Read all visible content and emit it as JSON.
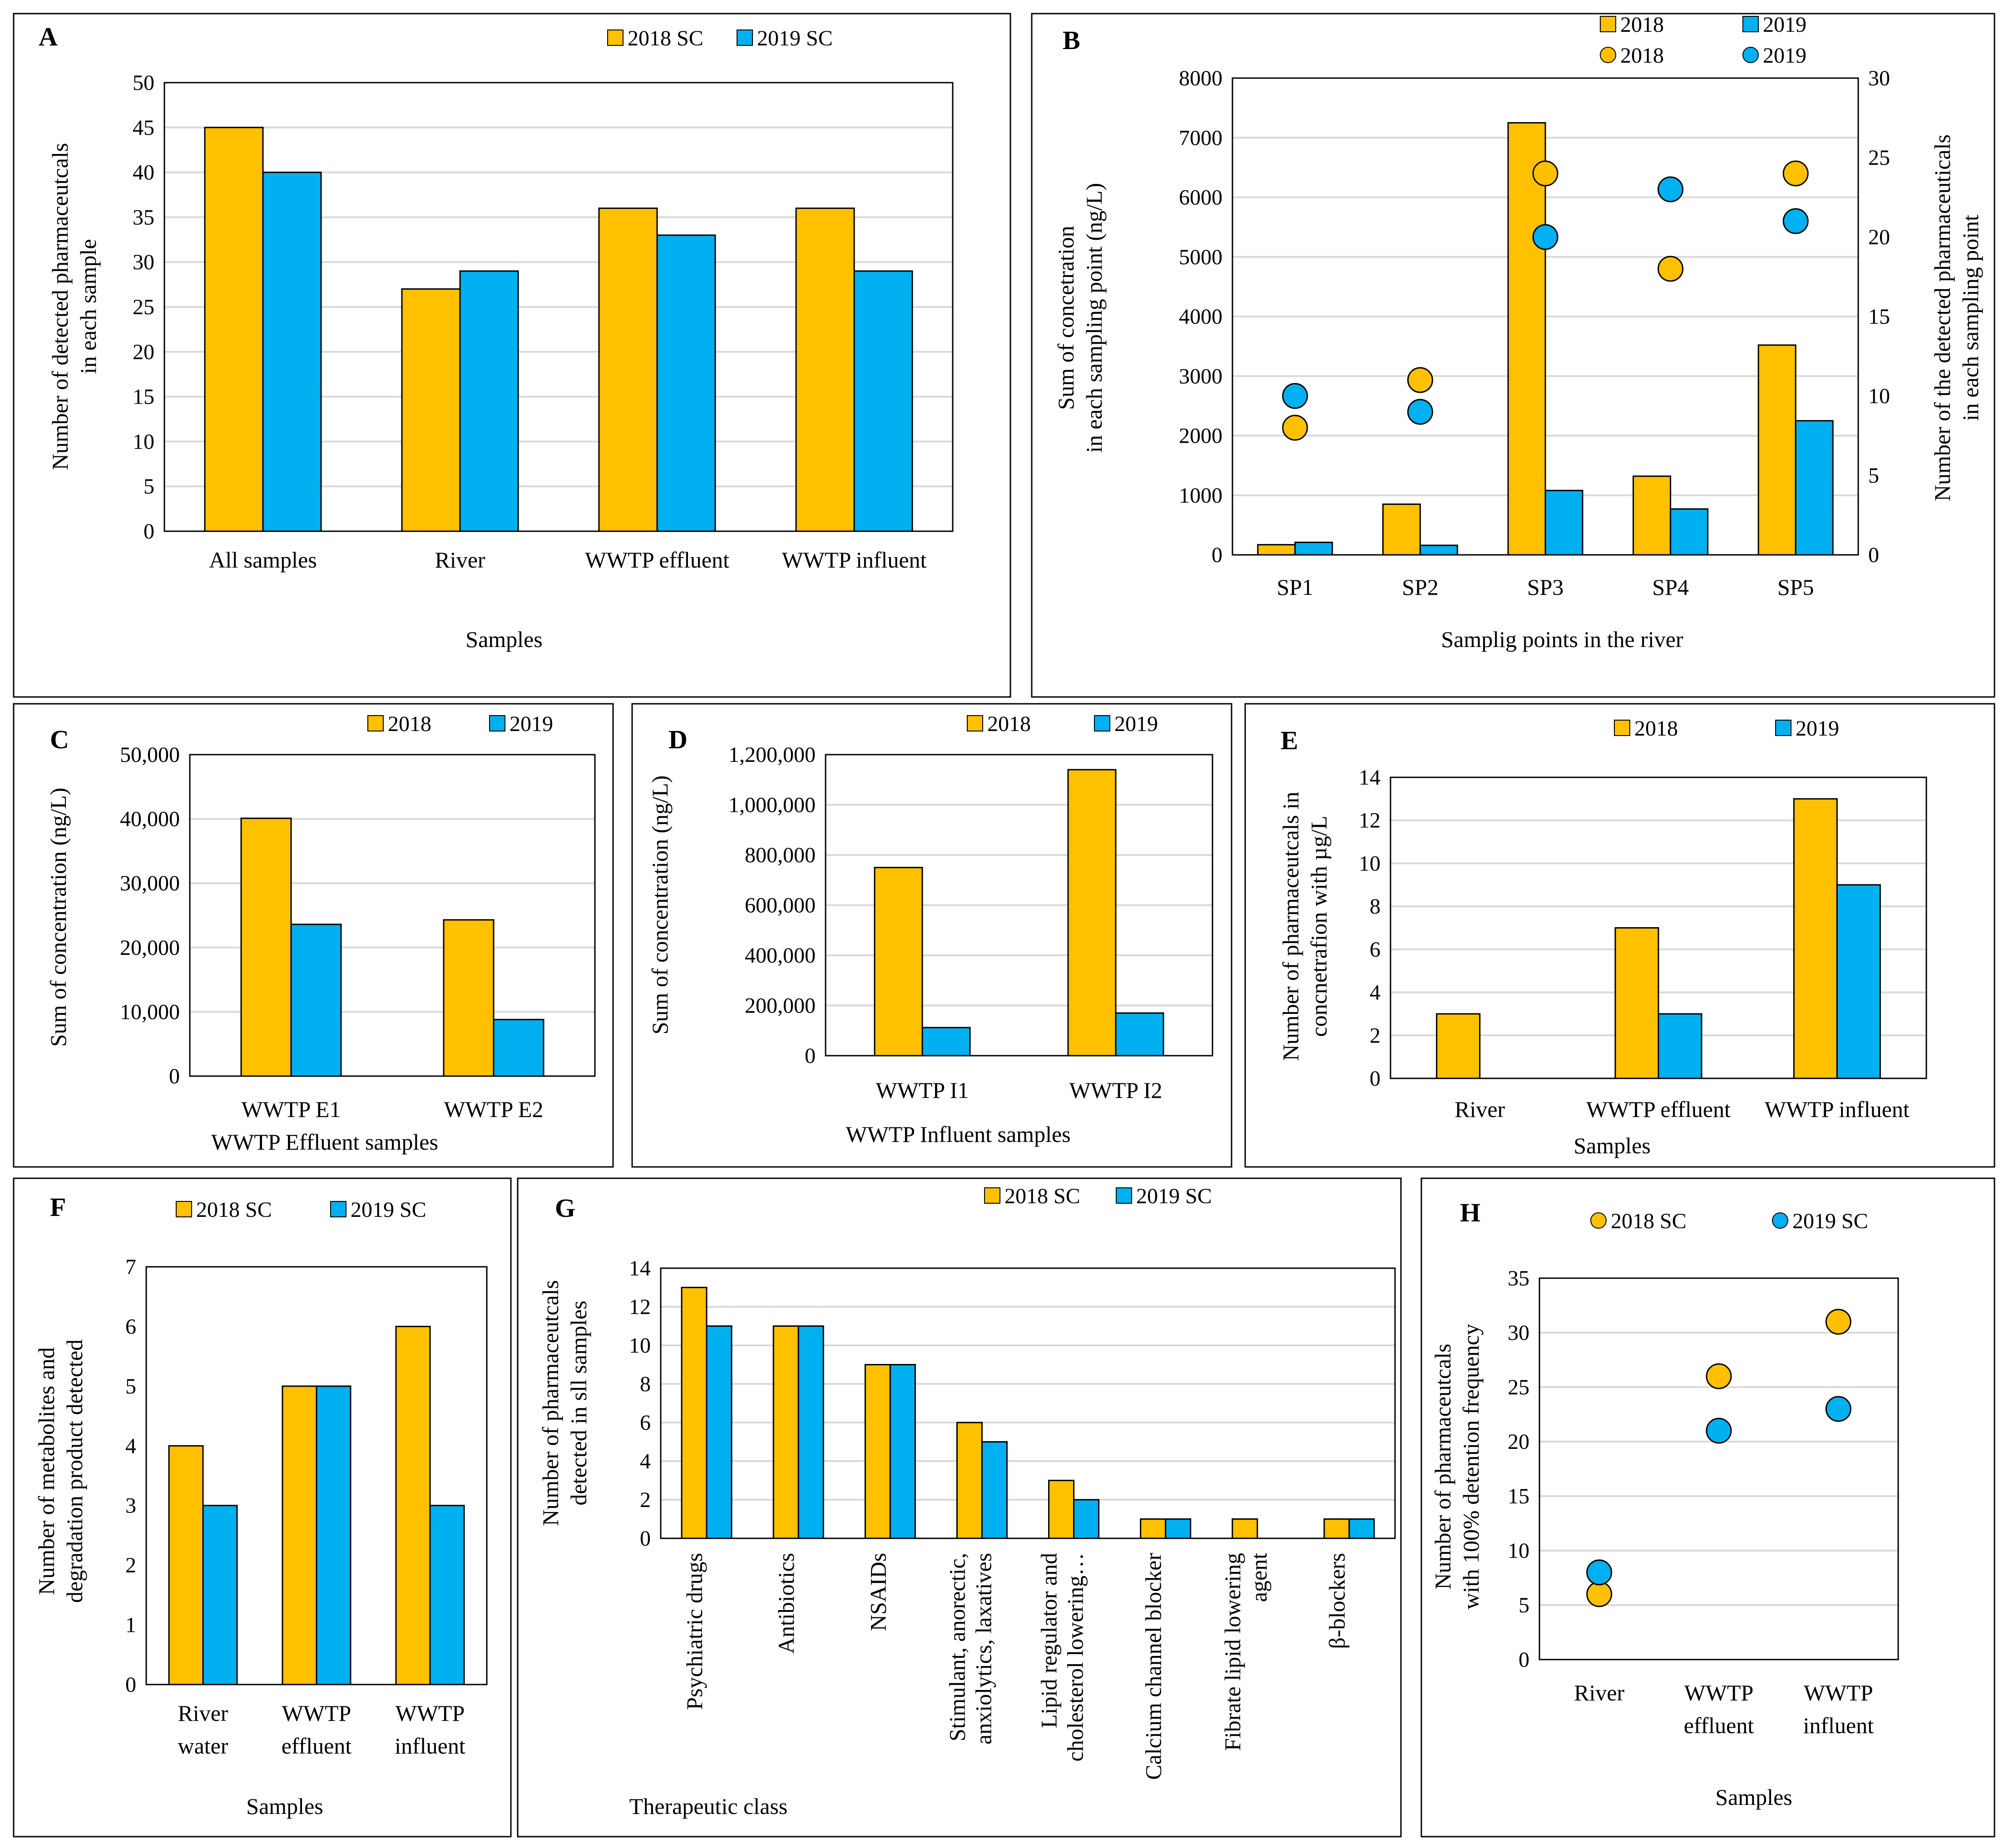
{
  "colors": {
    "y2018": "#ffc000",
    "y2019": "#00b0f0"
  },
  "chart_data": [
    {
      "id": "A",
      "type": "bar",
      "letter": "A",
      "categories": [
        "All samples",
        "River",
        "WWTP effluent",
        "WWTP influent"
      ],
      "series": [
        {
          "name": "2018 SC",
          "values": [
            45,
            27,
            36,
            36
          ]
        },
        {
          "name": "2019 SC",
          "values": [
            40,
            29,
            33,
            29
          ]
        }
      ],
      "ylim": [
        0,
        50
      ],
      "yticks": [
        0,
        5,
        10,
        15,
        20,
        25,
        30,
        35,
        40,
        45,
        50
      ],
      "ylabel": [
        "Number of detected pharmaceutcals",
        "in each sample"
      ],
      "xlabel": "Samples",
      "grid": true,
      "legend": "top"
    },
    {
      "id": "B",
      "type": "bar+scatter",
      "letter": "B",
      "categories": [
        "SP1",
        "SP2",
        "SP3",
        "SP4",
        "SP5"
      ],
      "series": [
        {
          "name": "2018",
          "kind": "bar",
          "values": [
            170,
            850,
            7250,
            1320,
            3520
          ]
        },
        {
          "name": "2019",
          "kind": "bar",
          "values": [
            210,
            160,
            1080,
            770,
            2250
          ]
        },
        {
          "name": "2018",
          "kind": "scatter",
          "axis": "secondary",
          "values": [
            8,
            11,
            24,
            18,
            24
          ]
        },
        {
          "name": "2019",
          "kind": "scatter",
          "axis": "secondary",
          "values": [
            10,
            9,
            20,
            23,
            21
          ]
        }
      ],
      "ylim": [
        0,
        8000
      ],
      "yticks": [
        0,
        1000,
        2000,
        3000,
        4000,
        5000,
        6000,
        7000,
        8000
      ],
      "y2lim": [
        0,
        30
      ],
      "y2ticks": [
        0,
        5,
        10,
        15,
        20,
        25,
        30
      ],
      "ylabel": [
        "Sum of concetration",
        "in each sampling point (ng/L)"
      ],
      "y2label": [
        "Number of the detected pharmaceuticals",
        "in each sampling point"
      ],
      "xlabel": "Samplig points in the river",
      "grid": true,
      "legend": "top-right"
    },
    {
      "id": "C",
      "type": "bar",
      "letter": "C",
      "categories": [
        "WWTP E1",
        "WWTP E2"
      ],
      "series": [
        {
          "name": "2018",
          "values": [
            40100,
            24300
          ]
        },
        {
          "name": "2019",
          "values": [
            23600,
            8800
          ]
        }
      ],
      "ylim": [
        0,
        50000
      ],
      "yticks": [
        "0",
        "10,000",
        "20,000",
        "30,000",
        "40,000",
        "50,000"
      ],
      "ylabel": [
        "Sum of concentration (ng/L)"
      ],
      "xlabel": "WWTP Effluent samples",
      "grid": true,
      "legend": "top"
    },
    {
      "id": "D",
      "type": "bar",
      "letter": "D",
      "categories": [
        "WWTP I1",
        "WWTP I2"
      ],
      "series": [
        {
          "name": "2018",
          "values": [
            750000,
            1140000
          ]
        },
        {
          "name": "2019",
          "values": [
            112000,
            170000
          ]
        }
      ],
      "ylim": [
        0,
        1200000
      ],
      "yticks": [
        "0",
        "200,000",
        "400,000",
        "600,000",
        "800,000",
        "1,000,000",
        "1,200,000"
      ],
      "ylabel": [
        "Sum of concentration (ng/L)"
      ],
      "xlabel": "WWTP Influent samples",
      "grid": true,
      "legend": "top"
    },
    {
      "id": "E",
      "type": "bar",
      "letter": "E",
      "categories": [
        "River",
        "WWTP effluent",
        "WWTP influent"
      ],
      "series": [
        {
          "name": "2018",
          "values": [
            3,
            7,
            13
          ]
        },
        {
          "name": "2019",
          "values": [
            0,
            3,
            9
          ]
        }
      ],
      "ylim": [
        0,
        14
      ],
      "yticks": [
        0,
        2,
        4,
        6,
        8,
        10,
        12,
        14
      ],
      "ylabel": [
        "Number of pharmaceutcals in",
        "concnetrafion  with µg/L"
      ],
      "xlabel": "Samples",
      "grid": true,
      "legend": "top"
    },
    {
      "id": "F",
      "type": "bar",
      "letter": "F",
      "categories": [
        [
          "River",
          "water"
        ],
        [
          "WWTP",
          "effluent"
        ],
        [
          "WWTP",
          "influent"
        ]
      ],
      "series": [
        {
          "name": "2018 SC",
          "values": [
            4,
            5,
            6
          ]
        },
        {
          "name": "2019 SC",
          "values": [
            3,
            5,
            3
          ]
        }
      ],
      "ylim": [
        0,
        7
      ],
      "yticks": [
        0,
        1,
        2,
        3,
        4,
        5,
        6,
        7
      ],
      "ylabel": [
        "Number of metabolites and",
        "degradation product detected"
      ],
      "xlabel": "Samples",
      "grid": false,
      "legend": "top"
    },
    {
      "id": "G",
      "type": "bar",
      "letter": "G",
      "categories": [
        [
          "Psychiatric drugs"
        ],
        [
          "Antibiotics"
        ],
        [
          "NSAIDs"
        ],
        [
          "Stimulant, anorectic,",
          "anxiolytics, laxatives"
        ],
        [
          "Lipid regulator and",
          "cholesterol lowering…"
        ],
        [
          "Calcium channel blocker"
        ],
        [
          "Fibrate lipid lowering",
          "agent"
        ],
        [
          "β-blockers"
        ]
      ],
      "series": [
        {
          "name": "2018 SC",
          "values": [
            13,
            11,
            9,
            6,
            3,
            1,
            1,
            1
          ]
        },
        {
          "name": "2019 SC",
          "values": [
            11,
            11,
            9,
            5,
            2,
            1,
            0,
            1
          ]
        }
      ],
      "ylim": [
        0,
        14
      ],
      "yticks": [
        0,
        2,
        4,
        6,
        8,
        10,
        12,
        14
      ],
      "ylabel": [
        "Number of pharmaceutcals",
        "detected in sll samples"
      ],
      "xlabel": "Therapeutic class",
      "grid": true,
      "legend": "top"
    },
    {
      "id": "H",
      "type": "scatter",
      "letter": "H",
      "categories": [
        [
          "River"
        ],
        [
          "WWTP",
          "effluent"
        ],
        [
          "WWTP",
          "influent"
        ]
      ],
      "series": [
        {
          "name": "2018 SC",
          "values": [
            6,
            26,
            31
          ]
        },
        {
          "name": "2019 SC",
          "values": [
            8,
            21,
            23
          ]
        }
      ],
      "ylim": [
        0,
        35
      ],
      "yticks": [
        0,
        5,
        10,
        15,
        20,
        25,
        30,
        35
      ],
      "ylabel": [
        "Number of pharmaceutcals",
        "with 100% detention frequency"
      ],
      "xlabel": "Samples",
      "grid": true,
      "legend": "top"
    }
  ]
}
